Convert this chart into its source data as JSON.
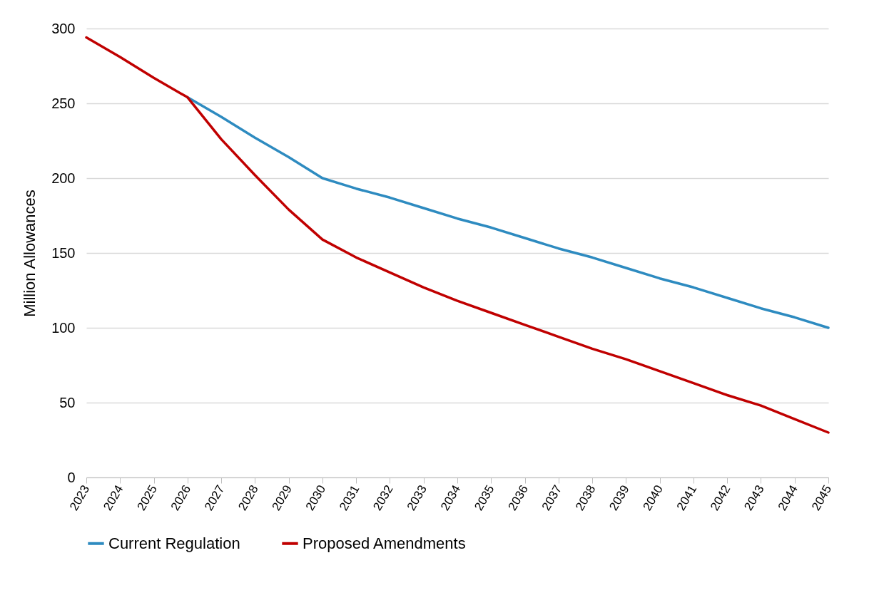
{
  "chart_data": {
    "type": "line",
    "ylabel": "Million Allowances",
    "categories": [
      "2023",
      "2024",
      "2025",
      "2026",
      "2027",
      "2028",
      "2029",
      "2030",
      "2031",
      "2032",
      "2033",
      "2034",
      "2035",
      "2036",
      "2037",
      "2038",
      "2039",
      "2040",
      "2041",
      "2042",
      "2043",
      "2044",
      "2045"
    ],
    "series": [
      {
        "name": "Current Regulation",
        "color": "#2e8bc0",
        "values": [
          null,
          null,
          null,
          254,
          241,
          227,
          214,
          200,
          193,
          187,
          180,
          173,
          167,
          160,
          153,
          147,
          140,
          133,
          127,
          120,
          113,
          107,
          100
        ]
      },
      {
        "name": "Proposed Amendments",
        "color": "#c00000",
        "values": [
          294,
          281,
          267,
          254,
          226,
          202,
          179,
          159,
          147,
          137,
          127,
          118,
          110,
          102,
          94,
          86,
          79,
          71,
          63,
          55,
          48,
          39,
          30
        ]
      }
    ],
    "ylim": [
      0,
      300
    ],
    "yticks": [
      0,
      50,
      100,
      150,
      200,
      250,
      300
    ],
    "grid": "y",
    "legend": "bottom",
    "marker": "none",
    "line_style": "solid"
  }
}
